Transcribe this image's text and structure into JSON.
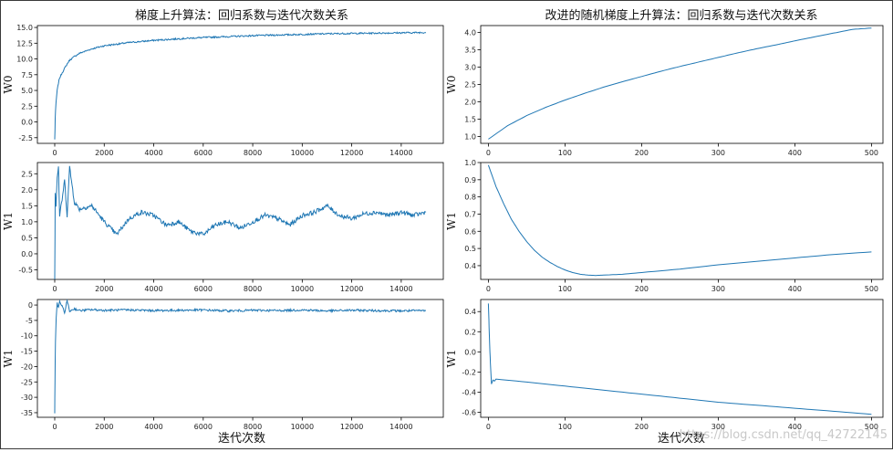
{
  "titles": {
    "left": "梯度上升算法：回归系数与迭代次数关系",
    "right": "改进的随机梯度上升算法：回归系数与迭代次数关系"
  },
  "xlabels": {
    "left": "迭代次数",
    "right": "迭代次数"
  },
  "watermark": "https://blog.csdn.net/qq_42722145",
  "colors": {
    "line": "#1f77b4",
    "axis": "#000000"
  },
  "chart_data": [
    {
      "type": "line",
      "title": "梯度上升算法：回归系数与迭代次数关系",
      "ylabel": "W0",
      "xlabel": "",
      "xlim": [
        -700,
        15700
      ],
      "ylim": [
        -3.4,
        15.3
      ],
      "xticks": [
        0,
        2000,
        4000,
        6000,
        8000,
        10000,
        12000,
        14000
      ],
      "yticks": [
        -2.5,
        0.0,
        2.5,
        5.0,
        7.5,
        10.0,
        12.5,
        15.0
      ],
      "xtick_labels": [
        "0",
        "2000",
        "4000",
        "6000",
        "8000",
        "10000",
        "12000",
        "14000"
      ],
      "ytick_labels": [
        "-2.5",
        "0.0",
        "2.5",
        "5.0",
        "7.5",
        "10.0",
        "12.5",
        "15.0"
      ],
      "series": [
        {
          "x": [
            0,
            20,
            50,
            100,
            150,
            200,
            300,
            400,
            500,
            600,
            800,
            1000,
            1500,
            2000,
            3000,
            4000,
            5000,
            6000,
            7000,
            8000,
            9000,
            10000,
            11000,
            12000,
            13000,
            14000,
            15000
          ],
          "y": [
            -2.8,
            0.5,
            3.0,
            5.0,
            6.2,
            7.0,
            7.8,
            8.5,
            9.2,
            9.8,
            10.4,
            10.9,
            11.6,
            12.1,
            12.6,
            12.95,
            13.2,
            13.4,
            13.55,
            13.7,
            13.8,
            13.9,
            14.0,
            14.05,
            14.1,
            14.15,
            14.2
          ]
        }
      ]
    },
    {
      "type": "line",
      "title": "改进的随机梯度上升算法：回归系数与迭代次数关系",
      "ylabel": "W0",
      "xlabel": "",
      "xlim": [
        -10,
        515
      ],
      "ylim": [
        0.8,
        4.2
      ],
      "xticks": [
        0,
        100,
        200,
        300,
        400,
        500
      ],
      "yticks": [
        1.0,
        1.5,
        2.0,
        2.5,
        3.0,
        3.5,
        4.0
      ],
      "xtick_labels": [
        "0",
        "100",
        "200",
        "300",
        "400",
        "500"
      ],
      "ytick_labels": [
        "1.0",
        "1.5",
        "2.0",
        "2.5",
        "3.0",
        "3.5",
        "4.0"
      ],
      "series": [
        {
          "x": [
            0,
            25,
            50,
            75,
            100,
            125,
            150,
            175,
            200,
            225,
            250,
            275,
            300,
            325,
            350,
            375,
            400,
            425,
            450,
            475,
            500
          ],
          "y": [
            0.92,
            1.31,
            1.6,
            1.84,
            2.05,
            2.24,
            2.42,
            2.58,
            2.73,
            2.88,
            3.02,
            3.15,
            3.28,
            3.41,
            3.53,
            3.64,
            3.76,
            3.87,
            3.98,
            4.09,
            4.13
          ]
        }
      ]
    },
    {
      "type": "line",
      "title": "",
      "ylabel": "W1",
      "xlabel": "",
      "xlim": [
        -700,
        15700
      ],
      "ylim": [
        -0.8,
        2.85
      ],
      "xticks": [
        0,
        2000,
        4000,
        6000,
        8000,
        10000,
        12000,
        14000
      ],
      "yticks": [
        -0.5,
        0.0,
        0.5,
        1.0,
        1.5,
        2.0,
        2.5
      ],
      "xtick_labels": [
        "0",
        "2000",
        "4000",
        "6000",
        "8000",
        "10000",
        "12000",
        "14000"
      ],
      "ytick_labels": [
        "-0.5",
        "0.0",
        "0.5",
        "1.0",
        "1.5",
        "2.0",
        "2.5"
      ],
      "series": [
        {
          "x": [
            0,
            20,
            50,
            100,
            150,
            200,
            300,
            400,
            500,
            600,
            800,
            1000,
            1500,
            2000,
            2500,
            3000,
            3500,
            4000,
            4500,
            5000,
            5500,
            6000,
            6500,
            7000,
            7500,
            8000,
            8500,
            9000,
            9500,
            10000,
            10500,
            11000,
            11500,
            12000,
            12500,
            13000,
            13500,
            14000,
            14500,
            15000
          ],
          "y": [
            -0.75,
            1.9,
            1.5,
            2.4,
            2.7,
            1.2,
            1.7,
            2.3,
            1.2,
            2.7,
            1.6,
            1.4,
            1.5,
            1.0,
            0.6,
            1.1,
            1.3,
            1.2,
            0.9,
            1.0,
            0.7,
            0.6,
            0.9,
            1.0,
            0.8,
            1.0,
            1.2,
            1.1,
            0.9,
            1.2,
            1.3,
            1.5,
            1.2,
            1.1,
            1.25,
            1.3,
            1.2,
            1.3,
            1.2,
            1.3
          ]
        }
      ]
    },
    {
      "type": "line",
      "title": "",
      "ylabel": "W1",
      "xlabel": "",
      "xlim": [
        -10,
        515
      ],
      "ylim": [
        0.32,
        1.0
      ],
      "xticks": [
        0,
        100,
        200,
        300,
        400,
        500
      ],
      "yticks": [
        0.4,
        0.5,
        0.6,
        0.7,
        0.8,
        0.9,
        1.0
      ],
      "xtick_labels": [
        "0",
        "100",
        "200",
        "300",
        "400",
        "500"
      ],
      "ytick_labels": [
        "0.4",
        "0.5",
        "0.6",
        "0.7",
        "0.8",
        "0.9",
        "1.0"
      ],
      "series": [
        {
          "x": [
            0,
            10,
            20,
            30,
            40,
            50,
            60,
            70,
            80,
            90,
            100,
            110,
            120,
            130,
            140,
            150,
            175,
            200,
            250,
            300,
            350,
            400,
            450,
            500
          ],
          "y": [
            0.985,
            0.86,
            0.76,
            0.67,
            0.6,
            0.54,
            0.49,
            0.45,
            0.42,
            0.395,
            0.375,
            0.36,
            0.35,
            0.345,
            0.343,
            0.345,
            0.35,
            0.36,
            0.38,
            0.405,
            0.425,
            0.445,
            0.465,
            0.48
          ]
        }
      ]
    },
    {
      "type": "line",
      "title": "",
      "ylabel": "W1",
      "xlabel": "迭代次数",
      "xlim": [
        -700,
        15700
      ],
      "ylim": [
        -36.5,
        1.8
      ],
      "xticks": [
        0,
        2000,
        4000,
        6000,
        8000,
        10000,
        12000,
        14000
      ],
      "yticks": [
        -35,
        -30,
        -25,
        -20,
        -15,
        -10,
        -5,
        0
      ],
      "xtick_labels": [
        "0",
        "2000",
        "4000",
        "6000",
        "8000",
        "10000",
        "12000",
        "14000"
      ],
      "ytick_labels": [
        "-35",
        "-30",
        "-25",
        "-20",
        "-15",
        "-10",
        "-5",
        "0"
      ],
      "series": [
        {
          "x": [
            0,
            10,
            30,
            60,
            100,
            150,
            200,
            300,
            400,
            500,
            600,
            800,
            1000,
            1500,
            2000,
            3000,
            4000,
            5000,
            6000,
            7000,
            8000,
            9000,
            10000,
            11000,
            12000,
            13000,
            14000,
            15000
          ],
          "y": [
            -35,
            -25,
            -12,
            -4,
            0.5,
            -1,
            1.2,
            -0.5,
            -2.5,
            1.5,
            -2.0,
            -1.2,
            -1.8,
            -1.5,
            -1.7,
            -1.6,
            -1.8,
            -1.7,
            -1.6,
            -1.9,
            -1.7,
            -1.8,
            -1.6,
            -1.9,
            -1.7,
            -1.8,
            -1.9,
            -1.8
          ]
        }
      ]
    },
    {
      "type": "line",
      "title": "",
      "ylabel": "W1",
      "xlabel": "迭代次数",
      "xlim": [
        -10,
        515
      ],
      "ylim": [
        -0.65,
        0.52
      ],
      "xticks": [
        0,
        100,
        200,
        300,
        400,
        500
      ],
      "yticks": [
        -0.6,
        -0.4,
        -0.2,
        0.0,
        0.2,
        0.4
      ],
      "xtick_labels": [
        "0",
        "100",
        "200",
        "300",
        "400",
        "500"
      ],
      "ytick_labels": [
        "-0.6",
        "-0.4",
        "-0.2",
        "0.0",
        "0.2",
        "0.4"
      ],
      "series": [
        {
          "x": [
            0,
            2,
            4,
            6,
            8,
            10,
            50,
            100,
            150,
            200,
            250,
            300,
            350,
            400,
            450,
            500
          ],
          "y": [
            0.48,
            0.0,
            -0.32,
            -0.28,
            -0.29,
            -0.27,
            -0.3,
            -0.34,
            -0.38,
            -0.42,
            -0.46,
            -0.5,
            -0.53,
            -0.56,
            -0.59,
            -0.62
          ]
        }
      ]
    }
  ]
}
